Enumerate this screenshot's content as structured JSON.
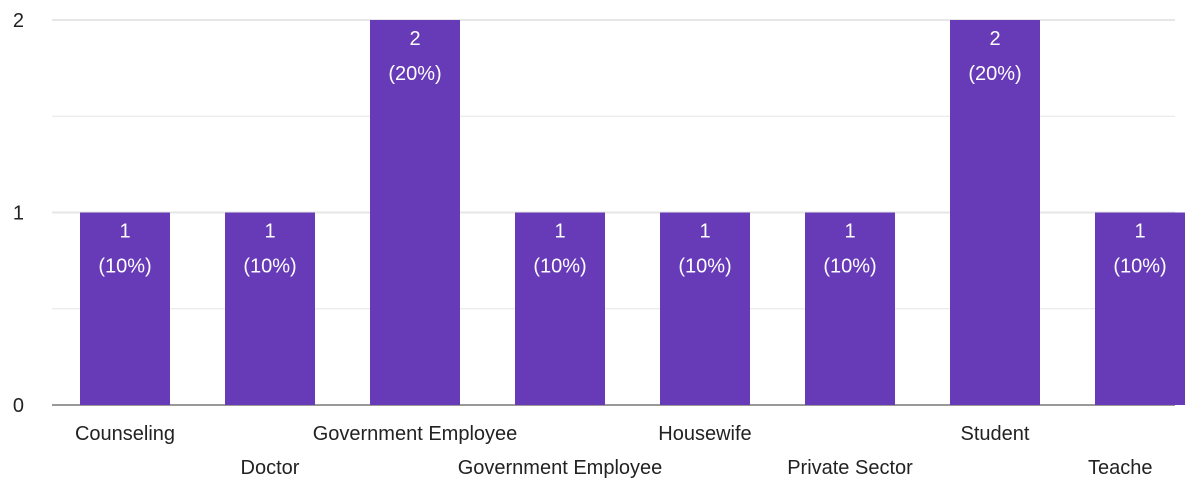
{
  "chart_data": {
    "type": "bar",
    "title": "",
    "xlabel": "",
    "ylabel": "",
    "ylim": [
      0,
      2
    ],
    "yticks": [
      "0",
      "1",
      "2"
    ],
    "grid": true,
    "legend": "none",
    "categories": [
      "Counseling",
      "Doctor",
      "Government Employee",
      "Government Employee",
      "Housewife",
      "Private Sector",
      "Student",
      "Teache"
    ],
    "values": [
      1,
      1,
      2,
      1,
      1,
      1,
      2,
      1
    ],
    "value_labels": [
      "1",
      "1",
      "2",
      "1",
      "1",
      "1",
      "2",
      "1"
    ],
    "percent_labels": [
      "(10%)",
      "(10%)",
      "(20%)",
      "(10%)",
      "(10%)",
      "(10%)",
      "(20%)",
      "(10%)"
    ],
    "colors": {
      "bar": "#673ab7",
      "grid": "#e6e6e6",
      "axis": "#333333",
      "label": "#222222",
      "bar_text": "#ffffff"
    }
  }
}
